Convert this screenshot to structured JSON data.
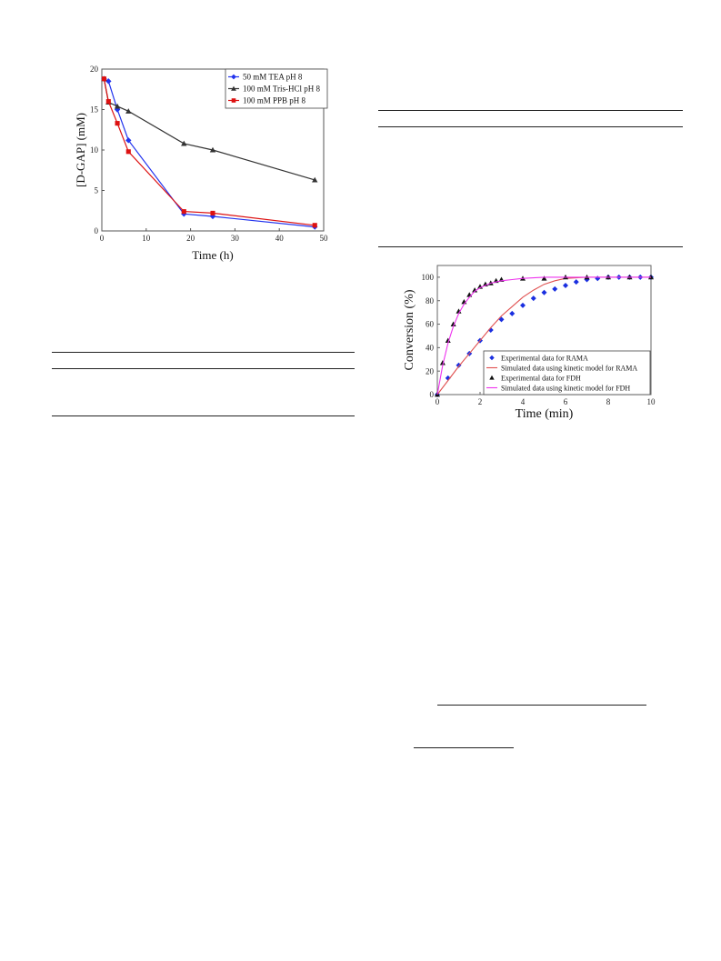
{
  "chart_data": [
    {
      "type": "line",
      "xlabel": "Time (h)",
      "ylabel": "[D-GAP] (mM)",
      "xlim": [
        0,
        50
      ],
      "ylim": [
        0,
        20
      ],
      "xticks": [
        "0",
        "10",
        "20",
        "30",
        "40",
        "50"
      ],
      "yticks": [
        "0",
        "5",
        "10",
        "15",
        "20"
      ],
      "grid": false,
      "legend_position": "top-right",
      "series": [
        {
          "name": "50 mM TEA pH 8",
          "color": "#2233ee",
          "marker": "diamond",
          "x": [
            0.5,
            1.5,
            3.5,
            6,
            18.5,
            25,
            48
          ],
          "y": [
            18.8,
            18.5,
            15.0,
            11.2,
            2.1,
            1.8,
            0.5
          ]
        },
        {
          "name": "100 mM Tris-HCl pH 8",
          "color": "#333333",
          "marker": "triangle",
          "x": [
            0.5,
            1.5,
            3.5,
            6,
            18.5,
            25,
            48
          ],
          "y": [
            18.8,
            15.9,
            15.4,
            14.8,
            10.8,
            10.0,
            6.3
          ]
        },
        {
          "name": "100 mM PPB pH 8",
          "color": "#dd1111",
          "marker": "square",
          "x": [
            0.5,
            1.5,
            3.5,
            6,
            18.5,
            25,
            48
          ],
          "y": [
            18.8,
            16.0,
            13.3,
            9.8,
            2.4,
            2.2,
            0.7
          ]
        }
      ]
    },
    {
      "type": "scatter",
      "xlabel": "Time (min)",
      "ylabel": "Conversion (%)",
      "xlim": [
        0,
        10
      ],
      "ylim": [
        0,
        110
      ],
      "xticks": [
        "0",
        "2",
        "4",
        "6",
        "8",
        "10"
      ],
      "yticks": [
        "0",
        "20",
        "40",
        "60",
        "80",
        "100"
      ],
      "grid": false,
      "legend_position": "bottom-right",
      "series": [
        {
          "name": "Experimental data for RAMA",
          "kind": "points",
          "color": "#1a2fe0",
          "marker": "diamond",
          "x": [
            0,
            0.5,
            1,
            1.5,
            2,
            2.5,
            3,
            3.5,
            4,
            4.5,
            5,
            5.5,
            6,
            6.5,
            7,
            7.5,
            8,
            8.5,
            9,
            9.5,
            10
          ],
          "y": [
            0,
            14,
            25,
            35,
            46,
            55,
            64,
            69,
            76,
            82,
            87,
            90,
            93,
            96,
            98,
            99,
            100,
            100,
            100,
            100,
            100
          ]
        },
        {
          "name": "Simulated data using kinetic model for RAMA",
          "kind": "line",
          "color": "#e05050",
          "x": [
            0,
            0.5,
            1,
            1.5,
            2,
            2.5,
            3,
            3.5,
            4,
            4.5,
            5,
            5.5,
            6,
            7,
            8,
            9,
            10
          ],
          "y": [
            0,
            12,
            24,
            35,
            46,
            57,
            67,
            75,
            83,
            89,
            94,
            97,
            99,
            100,
            100,
            100,
            100
          ]
        },
        {
          "name": "Experimental data for FDH",
          "kind": "points",
          "color": "#111111",
          "marker": "triangle",
          "x": [
            0,
            0.25,
            0.5,
            0.75,
            1,
            1.25,
            1.5,
            1.75,
            2,
            2.25,
            2.5,
            2.75,
            3,
            4,
            5,
            6,
            7,
            8,
            9,
            10
          ],
          "y": [
            0,
            27,
            46,
            60,
            71,
            79,
            85,
            89,
            92,
            94,
            95,
            97,
            98,
            99,
            99,
            100,
            100,
            100,
            100,
            100
          ]
        },
        {
          "name": "Simulated data using kinetic model for FDH",
          "kind": "line",
          "color": "#ee33ee",
          "x": [
            0,
            0.25,
            0.5,
            0.75,
            1,
            1.25,
            1.5,
            1.75,
            2,
            2.5,
            3,
            3.5,
            4,
            5,
            6,
            7,
            8,
            9,
            10
          ],
          "y": [
            0,
            25,
            44,
            58,
            69,
            77,
            83,
            88,
            91,
            95,
            97,
            98,
            99,
            100,
            100,
            100,
            100,
            100,
            100
          ]
        }
      ]
    }
  ]
}
